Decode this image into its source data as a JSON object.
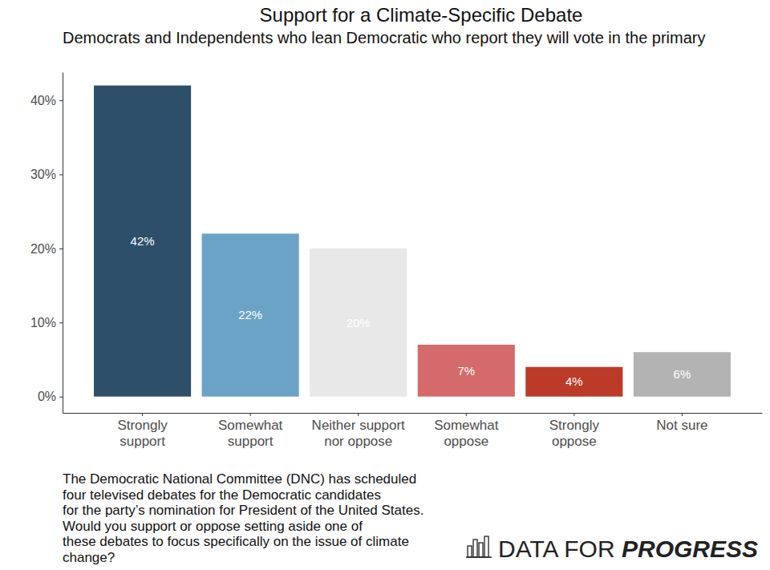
{
  "chart_data": {
    "type": "bar",
    "title": "Support for a Climate-Specific Debate",
    "subtitle": "Democrats and Independents who lean Democratic who report they will vote in the primary",
    "categories": [
      "Strongly\nsupport",
      "Somewhat\nsupport",
      "Neither support\nnor oppose",
      "Somewhat\noppose",
      "Strongly\noppose",
      "Not sure"
    ],
    "values": [
      42,
      22,
      20,
      7,
      4,
      6
    ],
    "value_labels": [
      "42%",
      "22%",
      "20%",
      "7%",
      "4%",
      "6%"
    ],
    "colors": [
      "#2d4f6a",
      "#6aa3c5",
      "#e8e8e8",
      "#d46a6a",
      "#bc3b28",
      "#b3b3b3"
    ],
    "ylim": [
      -2.2,
      43.8
    ],
    "yticks": [
      {
        "value": 0,
        "label": "0%"
      },
      {
        "value": 10,
        "label": "10%"
      },
      {
        "value": 20,
        "label": "20%"
      },
      {
        "value": 30,
        "label": "30%"
      },
      {
        "value": 40,
        "label": "40%"
      }
    ],
    "grid": false,
    "data_labels": true,
    "caption": [
      "The Democratic National Committee (DNC) has scheduled",
      "four televised debates for the Democratic candidates",
      "for the party’s nomination for President of the United States.",
      "Would you support or oppose setting aside one of",
      "these debates to focus specifically on the issue of climate",
      "change?"
    ],
    "source": "DATA FOR PROGRESS"
  }
}
